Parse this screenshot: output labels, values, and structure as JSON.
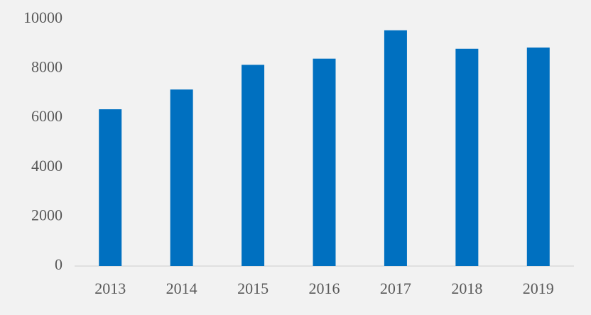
{
  "chart_data": {
    "type": "bar",
    "categories": [
      "2013",
      "2014",
      "2015",
      "2016",
      "2017",
      "2018",
      "2019"
    ],
    "values": [
      6350,
      7150,
      8150,
      8400,
      9550,
      8800,
      8850
    ],
    "color": "#0070c0",
    "ylim": [
      0,
      10000
    ],
    "yticks": [
      0,
      2000,
      4000,
      6000,
      8000,
      10000
    ],
    "grid": false
  }
}
